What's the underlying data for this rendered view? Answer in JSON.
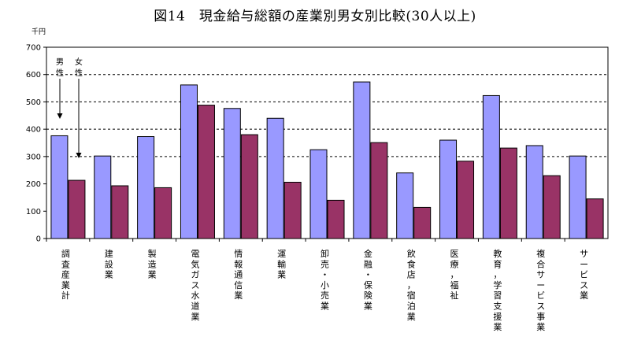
{
  "title": "図14　現金給与総額の産業別男女別比較(30人以上)",
  "unit": "千円",
  "colors": {
    "male": "#9999ff",
    "female": "#993366",
    "plot_bg": "#ffffff",
    "grid": "#000000"
  },
  "annotations": {
    "male": "男性",
    "female": "女性"
  },
  "chart_data": {
    "type": "bar",
    "title": "図14　現金給与総額の産業別男女別比較(30人以上)",
    "ylabel": "千円",
    "xlabel": "",
    "ylim": [
      0,
      700
    ],
    "yticks": [
      0,
      100,
      200,
      300,
      400,
      500,
      600,
      700
    ],
    "grid": "dashed horizontal at 300, 400, 500, 600",
    "legend": "none (in-plot annotations 男性 / 女性 with arrows)",
    "categories": [
      "調査産業計",
      "建設業",
      "製造業",
      "電気ガス水道業",
      "情報通信業",
      "運輸業",
      "卸売・小売業",
      "金融・保険業",
      "飲食店，宿泊業",
      "医療，福祉",
      "教育，学習支援業",
      "複合サービス事業",
      "サービス業"
    ],
    "series": [
      {
        "name": "男性",
        "values": [
          376,
          302,
          373,
          562,
          476,
          440,
          325,
          573,
          240,
          360,
          523,
          340,
          302
        ]
      },
      {
        "name": "女性",
        "values": [
          213,
          193,
          186,
          488,
          380,
          206,
          140,
          351,
          114,
          283,
          331,
          230,
          145
        ]
      }
    ]
  }
}
